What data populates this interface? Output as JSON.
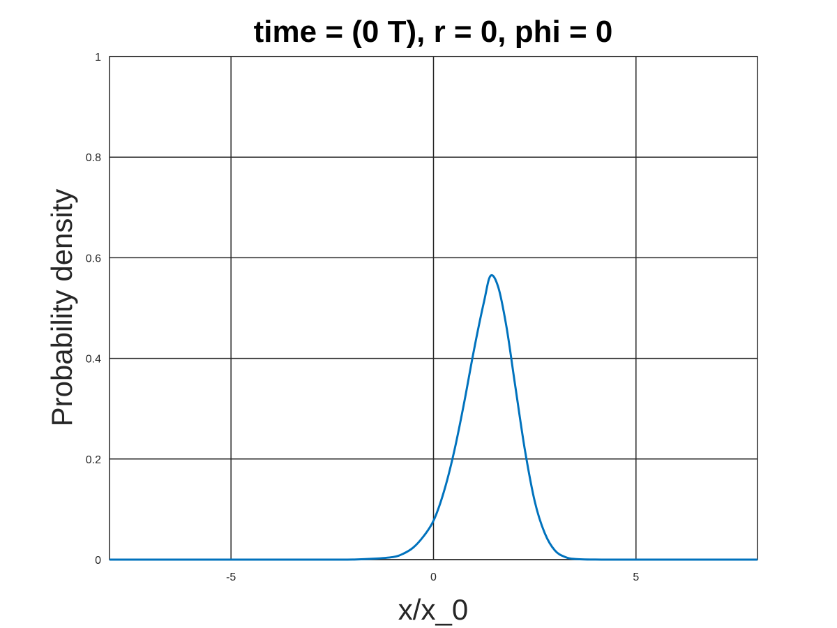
{
  "chart_data": {
    "type": "line",
    "title": "time = (0 T), r = 0, phi = 0",
    "xlabel": "x/x_0",
    "ylabel": "Probability density",
    "xlim": [
      -8,
      8
    ],
    "ylim": [
      0,
      1
    ],
    "xticks": [
      -5,
      0,
      5
    ],
    "xtick_labels": [
      "-5",
      "0",
      "5"
    ],
    "yticks": [
      0,
      0.2,
      0.4,
      0.6,
      0.8,
      1
    ],
    "ytick_labels": [
      "0",
      "0.2",
      "0.4",
      "0.6",
      "0.8",
      "1"
    ],
    "grid": true,
    "series": [
      {
        "color": "#0072bd",
        "x": [
          -8,
          -3,
          -2,
          -1.5,
          -1,
          -0.75,
          -0.5,
          -0.25,
          0,
          0.25,
          0.5,
          0.75,
          1,
          1.25,
          1.41,
          1.6,
          1.8,
          2,
          2.25,
          2.5,
          2.75,
          3,
          3.25,
          3.5,
          4,
          5,
          8
        ],
        "y": [
          0,
          0,
          0.0001,
          0.0017,
          0.0052,
          0.0116,
          0.024,
          0.0459,
          0.0772,
          0.1333,
          0.2112,
          0.3088,
          0.4171,
          0.5138,
          0.5642,
          0.5413,
          0.4638,
          0.3556,
          0.2217,
          0.1156,
          0.052,
          0.018,
          0.0053,
          0.0012,
          0.0001,
          0,
          0
        ]
      }
    ]
  }
}
